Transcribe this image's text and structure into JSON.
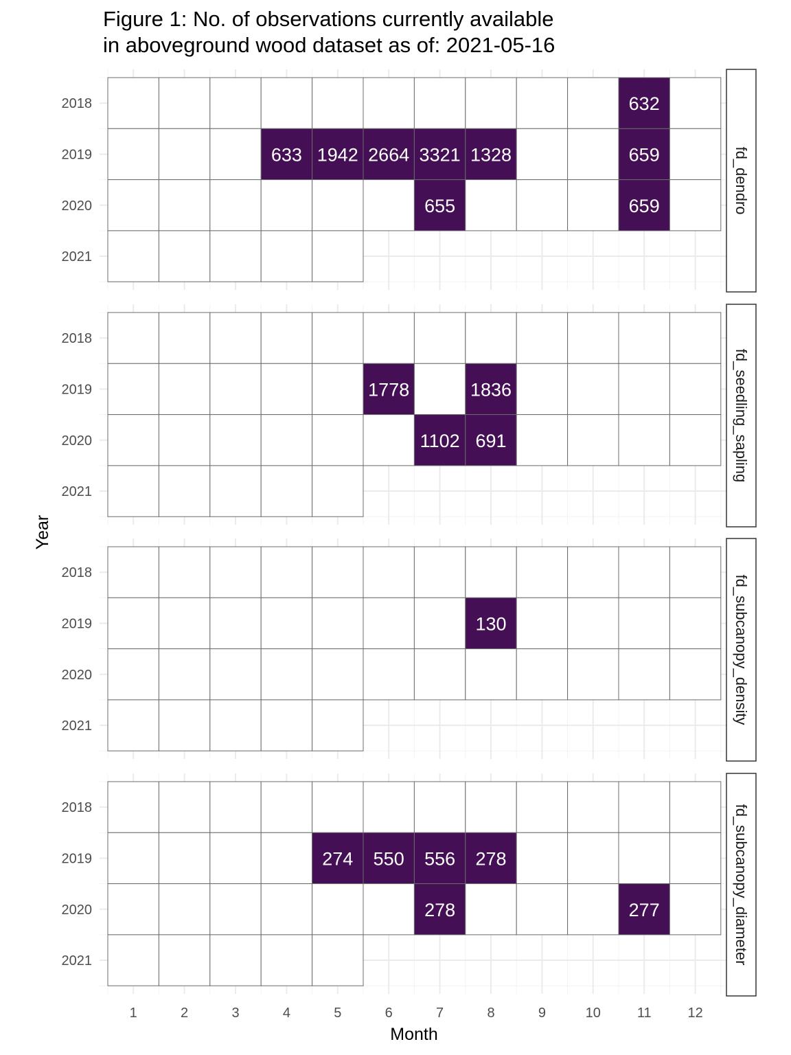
{
  "chart_data": {
    "type": "heatmap",
    "title": "Figure 1: No. of observations currently available in aboveground wood dataset as of: 2021-05-16",
    "title_lines": [
      "Figure 1: No. of observations currently available",
      "in aboveground wood dataset as of: 2021-05-16"
    ],
    "xlabel": "Month",
    "ylabel": "Year",
    "x": [
      "1",
      "2",
      "3",
      "4",
      "5",
      "6",
      "7",
      "8",
      "9",
      "10",
      "11",
      "12"
    ],
    "y": [
      "2018",
      "2019",
      "2020",
      "2021"
    ],
    "grid": true,
    "colors": {
      "filled": "#440f54",
      "empty": "#ffffff",
      "value_text": "#ffffff",
      "cell_border": "#6b6b6b"
    },
    "facets": [
      {
        "name": "fd_dendro",
        "cells": [
          {
            "year": "2018",
            "month": 1,
            "value": null
          },
          {
            "year": "2018",
            "month": 2,
            "value": null
          },
          {
            "year": "2018",
            "month": 3,
            "value": null
          },
          {
            "year": "2018",
            "month": 4,
            "value": null
          },
          {
            "year": "2018",
            "month": 5,
            "value": null
          },
          {
            "year": "2018",
            "month": 6,
            "value": null
          },
          {
            "year": "2018",
            "month": 7,
            "value": null
          },
          {
            "year": "2018",
            "month": 8,
            "value": null
          },
          {
            "year": "2018",
            "month": 9,
            "value": null
          },
          {
            "year": "2018",
            "month": 10,
            "value": null
          },
          {
            "year": "2018",
            "month": 11,
            "value": 632
          },
          {
            "year": "2018",
            "month": 12,
            "value": null
          },
          {
            "year": "2019",
            "month": 1,
            "value": null
          },
          {
            "year": "2019",
            "month": 2,
            "value": null
          },
          {
            "year": "2019",
            "month": 3,
            "value": null
          },
          {
            "year": "2019",
            "month": 4,
            "value": 633
          },
          {
            "year": "2019",
            "month": 5,
            "value": 1942
          },
          {
            "year": "2019",
            "month": 6,
            "value": 2664
          },
          {
            "year": "2019",
            "month": 7,
            "value": 3321
          },
          {
            "year": "2019",
            "month": 8,
            "value": 1328
          },
          {
            "year": "2019",
            "month": 9,
            "value": null
          },
          {
            "year": "2019",
            "month": 10,
            "value": null
          },
          {
            "year": "2019",
            "month": 11,
            "value": 659
          },
          {
            "year": "2019",
            "month": 12,
            "value": null
          },
          {
            "year": "2020",
            "month": 1,
            "value": null
          },
          {
            "year": "2020",
            "month": 2,
            "value": null
          },
          {
            "year": "2020",
            "month": 3,
            "value": null
          },
          {
            "year": "2020",
            "month": 4,
            "value": null
          },
          {
            "year": "2020",
            "month": 5,
            "value": null
          },
          {
            "year": "2020",
            "month": 6,
            "value": null
          },
          {
            "year": "2020",
            "month": 7,
            "value": 655
          },
          {
            "year": "2020",
            "month": 8,
            "value": null
          },
          {
            "year": "2020",
            "month": 9,
            "value": null
          },
          {
            "year": "2020",
            "month": 10,
            "value": null
          },
          {
            "year": "2020",
            "month": 11,
            "value": 659
          },
          {
            "year": "2020",
            "month": 12,
            "value": null
          },
          {
            "year": "2021",
            "month": 1,
            "value": null
          },
          {
            "year": "2021",
            "month": 2,
            "value": null
          },
          {
            "year": "2021",
            "month": 3,
            "value": null
          },
          {
            "year": "2021",
            "month": 4,
            "value": null
          },
          {
            "year": "2021",
            "month": 5,
            "value": null
          }
        ]
      },
      {
        "name": "fd_seedling_sapling",
        "cells": [
          {
            "year": "2018",
            "month": 1,
            "value": null
          },
          {
            "year": "2018",
            "month": 2,
            "value": null
          },
          {
            "year": "2018",
            "month": 3,
            "value": null
          },
          {
            "year": "2018",
            "month": 4,
            "value": null
          },
          {
            "year": "2018",
            "month": 5,
            "value": null
          },
          {
            "year": "2018",
            "month": 6,
            "value": null
          },
          {
            "year": "2018",
            "month": 7,
            "value": null
          },
          {
            "year": "2018",
            "month": 8,
            "value": null
          },
          {
            "year": "2018",
            "month": 9,
            "value": null
          },
          {
            "year": "2018",
            "month": 10,
            "value": null
          },
          {
            "year": "2018",
            "month": 11,
            "value": null
          },
          {
            "year": "2018",
            "month": 12,
            "value": null
          },
          {
            "year": "2019",
            "month": 1,
            "value": null
          },
          {
            "year": "2019",
            "month": 2,
            "value": null
          },
          {
            "year": "2019",
            "month": 3,
            "value": null
          },
          {
            "year": "2019",
            "month": 4,
            "value": null
          },
          {
            "year": "2019",
            "month": 5,
            "value": null
          },
          {
            "year": "2019",
            "month": 6,
            "value": 1778
          },
          {
            "year": "2019",
            "month": 7,
            "value": null
          },
          {
            "year": "2019",
            "month": 8,
            "value": 1836
          },
          {
            "year": "2019",
            "month": 9,
            "value": null
          },
          {
            "year": "2019",
            "month": 10,
            "value": null
          },
          {
            "year": "2019",
            "month": 11,
            "value": null
          },
          {
            "year": "2019",
            "month": 12,
            "value": null
          },
          {
            "year": "2020",
            "month": 1,
            "value": null
          },
          {
            "year": "2020",
            "month": 2,
            "value": null
          },
          {
            "year": "2020",
            "month": 3,
            "value": null
          },
          {
            "year": "2020",
            "month": 4,
            "value": null
          },
          {
            "year": "2020",
            "month": 5,
            "value": null
          },
          {
            "year": "2020",
            "month": 6,
            "value": null
          },
          {
            "year": "2020",
            "month": 7,
            "value": 1102
          },
          {
            "year": "2020",
            "month": 8,
            "value": 691
          },
          {
            "year": "2020",
            "month": 9,
            "value": null
          },
          {
            "year": "2020",
            "month": 10,
            "value": null
          },
          {
            "year": "2020",
            "month": 11,
            "value": null
          },
          {
            "year": "2020",
            "month": 12,
            "value": null
          },
          {
            "year": "2021",
            "month": 1,
            "value": null
          },
          {
            "year": "2021",
            "month": 2,
            "value": null
          },
          {
            "year": "2021",
            "month": 3,
            "value": null
          },
          {
            "year": "2021",
            "month": 4,
            "value": null
          },
          {
            "year": "2021",
            "month": 5,
            "value": null
          }
        ]
      },
      {
        "name": "fd_subcanopy_density",
        "cells": [
          {
            "year": "2018",
            "month": 1,
            "value": null
          },
          {
            "year": "2018",
            "month": 2,
            "value": null
          },
          {
            "year": "2018",
            "month": 3,
            "value": null
          },
          {
            "year": "2018",
            "month": 4,
            "value": null
          },
          {
            "year": "2018",
            "month": 5,
            "value": null
          },
          {
            "year": "2018",
            "month": 6,
            "value": null
          },
          {
            "year": "2018",
            "month": 7,
            "value": null
          },
          {
            "year": "2018",
            "month": 8,
            "value": null
          },
          {
            "year": "2018",
            "month": 9,
            "value": null
          },
          {
            "year": "2018",
            "month": 10,
            "value": null
          },
          {
            "year": "2018",
            "month": 11,
            "value": null
          },
          {
            "year": "2018",
            "month": 12,
            "value": null
          },
          {
            "year": "2019",
            "month": 1,
            "value": null
          },
          {
            "year": "2019",
            "month": 2,
            "value": null
          },
          {
            "year": "2019",
            "month": 3,
            "value": null
          },
          {
            "year": "2019",
            "month": 4,
            "value": null
          },
          {
            "year": "2019",
            "month": 5,
            "value": null
          },
          {
            "year": "2019",
            "month": 6,
            "value": null
          },
          {
            "year": "2019",
            "month": 7,
            "value": null
          },
          {
            "year": "2019",
            "month": 8,
            "value": 130
          },
          {
            "year": "2019",
            "month": 9,
            "value": null
          },
          {
            "year": "2019",
            "month": 10,
            "value": null
          },
          {
            "year": "2019",
            "month": 11,
            "value": null
          },
          {
            "year": "2019",
            "month": 12,
            "value": null
          },
          {
            "year": "2020",
            "month": 1,
            "value": null
          },
          {
            "year": "2020",
            "month": 2,
            "value": null
          },
          {
            "year": "2020",
            "month": 3,
            "value": null
          },
          {
            "year": "2020",
            "month": 4,
            "value": null
          },
          {
            "year": "2020",
            "month": 5,
            "value": null
          },
          {
            "year": "2020",
            "month": 6,
            "value": null
          },
          {
            "year": "2020",
            "month": 7,
            "value": null
          },
          {
            "year": "2020",
            "month": 8,
            "value": null
          },
          {
            "year": "2020",
            "month": 9,
            "value": null
          },
          {
            "year": "2020",
            "month": 10,
            "value": null
          },
          {
            "year": "2020",
            "month": 11,
            "value": null
          },
          {
            "year": "2020",
            "month": 12,
            "value": null
          },
          {
            "year": "2021",
            "month": 1,
            "value": null
          },
          {
            "year": "2021",
            "month": 2,
            "value": null
          },
          {
            "year": "2021",
            "month": 3,
            "value": null
          },
          {
            "year": "2021",
            "month": 4,
            "value": null
          },
          {
            "year": "2021",
            "month": 5,
            "value": null
          }
        ]
      },
      {
        "name": "fd_subcanopy_diameter",
        "cells": [
          {
            "year": "2018",
            "month": 1,
            "value": null
          },
          {
            "year": "2018",
            "month": 2,
            "value": null
          },
          {
            "year": "2018",
            "month": 3,
            "value": null
          },
          {
            "year": "2018",
            "month": 4,
            "value": null
          },
          {
            "year": "2018",
            "month": 5,
            "value": null
          },
          {
            "year": "2018",
            "month": 6,
            "value": null
          },
          {
            "year": "2018",
            "month": 7,
            "value": null
          },
          {
            "year": "2018",
            "month": 8,
            "value": null
          },
          {
            "year": "2018",
            "month": 9,
            "value": null
          },
          {
            "year": "2018",
            "month": 10,
            "value": null
          },
          {
            "year": "2018",
            "month": 11,
            "value": null
          },
          {
            "year": "2018",
            "month": 12,
            "value": null
          },
          {
            "year": "2019",
            "month": 1,
            "value": null
          },
          {
            "year": "2019",
            "month": 2,
            "value": null
          },
          {
            "year": "2019",
            "month": 3,
            "value": null
          },
          {
            "year": "2019",
            "month": 4,
            "value": null
          },
          {
            "year": "2019",
            "month": 5,
            "value": 274
          },
          {
            "year": "2019",
            "month": 6,
            "value": 550
          },
          {
            "year": "2019",
            "month": 7,
            "value": 556
          },
          {
            "year": "2019",
            "month": 8,
            "value": 278
          },
          {
            "year": "2019",
            "month": 9,
            "value": null
          },
          {
            "year": "2019",
            "month": 10,
            "value": null
          },
          {
            "year": "2019",
            "month": 11,
            "value": null
          },
          {
            "year": "2019",
            "month": 12,
            "value": null
          },
          {
            "year": "2020",
            "month": 1,
            "value": null
          },
          {
            "year": "2020",
            "month": 2,
            "value": null
          },
          {
            "year": "2020",
            "month": 3,
            "value": null
          },
          {
            "year": "2020",
            "month": 4,
            "value": null
          },
          {
            "year": "2020",
            "month": 5,
            "value": null
          },
          {
            "year": "2020",
            "month": 6,
            "value": null
          },
          {
            "year": "2020",
            "month": 7,
            "value": 278
          },
          {
            "year": "2020",
            "month": 8,
            "value": null
          },
          {
            "year": "2020",
            "month": 9,
            "value": null
          },
          {
            "year": "2020",
            "month": 10,
            "value": null
          },
          {
            "year": "2020",
            "month": 11,
            "value": 277
          },
          {
            "year": "2020",
            "month": 12,
            "value": null
          },
          {
            "year": "2021",
            "month": 1,
            "value": null
          },
          {
            "year": "2021",
            "month": 2,
            "value": null
          },
          {
            "year": "2021",
            "month": 3,
            "value": null
          },
          {
            "year": "2021",
            "month": 4,
            "value": null
          },
          {
            "year": "2021",
            "month": 5,
            "value": null
          }
        ]
      }
    ]
  }
}
